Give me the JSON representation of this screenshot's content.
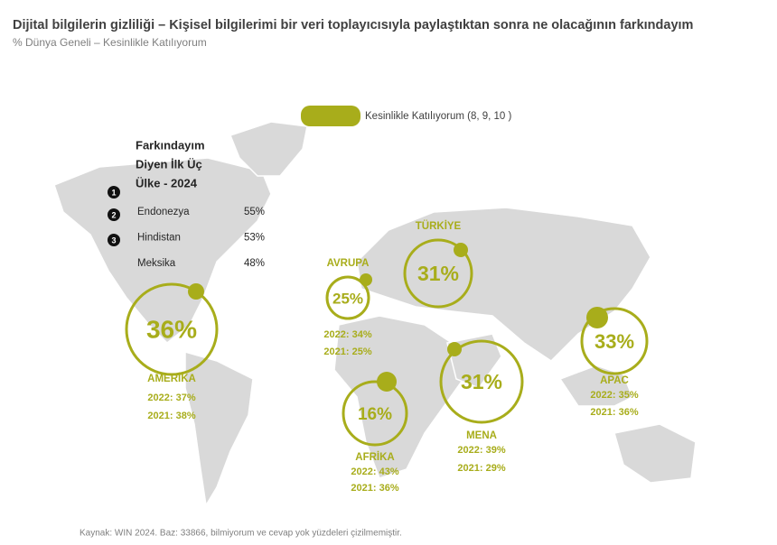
{
  "header": {
    "title": "Dijital bilgilerin gizliliği – Kişisel bilgilerimi bir veri toplayıcısıyla paylaştıktan sonra ne olacağının farkındayım",
    "subtitle": "% Dünya Geneli – Kesinlikle Katılıyorum"
  },
  "legend": {
    "label": "Kesinlikle Katılıyorum (8, 9, 10 )"
  },
  "top_three": {
    "title_lines": [
      "Farkındayım",
      "Diyen İlk Üç",
      "Ülke - 2024"
    ],
    "rows": [
      [
        "Endonezya",
        "55%"
      ],
      [
        "Hindistan",
        "53%"
      ],
      [
        "Meksika",
        "48%"
      ]
    ]
  },
  "regions": [
    {
      "name": "AMERİKA",
      "value": "36%",
      "y2022": "2022: 37%",
      "y2021": "2021: 38%"
    },
    {
      "name": "AVRUPA",
      "value": "25%",
      "y2022": "2022: 34%",
      "y2021": "2021: 25%"
    },
    {
      "name": "TÜRKİYE",
      "value": "31%"
    },
    {
      "name": "MENA",
      "value": "31%",
      "y2022": "2022: 39%",
      "y2021": "2021: 29%"
    },
    {
      "name": "AFRİKA",
      "value": "16%",
      "y2022": "2022: 43%",
      "y2021": "2021: 36%"
    },
    {
      "name": "APAC",
      "value": "33%",
      "y2022": "2022: 35%",
      "y2021": "2021: 36%"
    }
  ],
  "source": "Kaynak: WIN 2024. Baz: 33866, bilmiyorum ve cevap yok yüzdeleri çizilmemiştir."
}
